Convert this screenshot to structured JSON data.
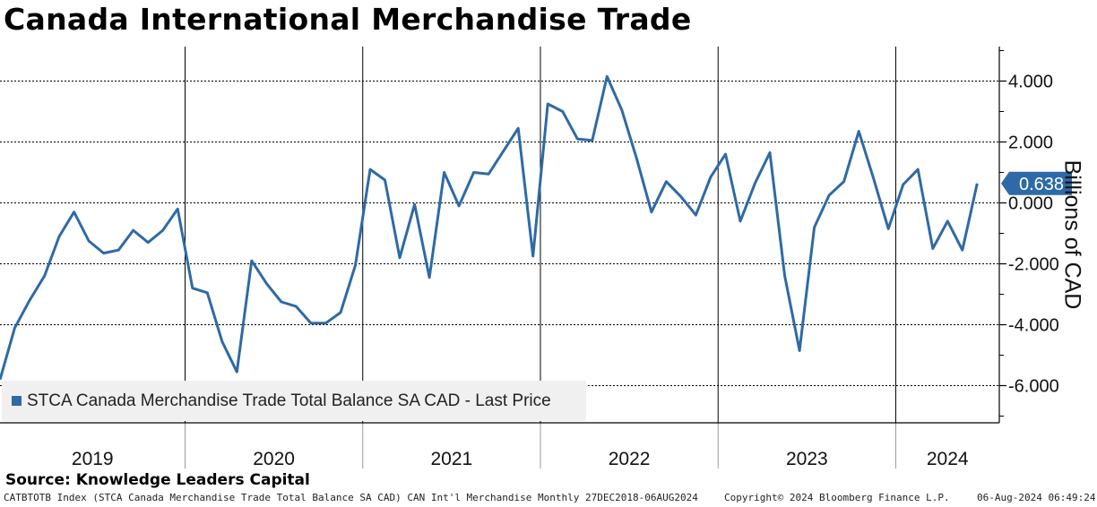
{
  "title": "Canada International Merchandise Trade",
  "source": "Source: Knowledge Leaders Capital",
  "footer": {
    "left": "CATBTOTB Index (STCA Canada Merchandise Trade Total Balance SA CAD) CAN Int'l Merchandise  Monthly 27DEC2018-06AUG2024",
    "copyright": "Copyright© 2024 Bloomberg Finance L.P.",
    "timestamp": "06-Aug-2024 06:49:24"
  },
  "colors": {
    "series": "#2e6aa6",
    "grid": "#000000",
    "legend_bg": "#f0f0f0"
  },
  "chart_data": {
    "type": "line",
    "title": "Canada International Merchandise Trade",
    "ylabel": "Billions of CAD",
    "ylim": [
      -7.2,
      5.2
    ],
    "y_ticks": [
      4.0,
      2.0,
      0.0,
      -2.0,
      -4.0,
      -6.0
    ],
    "y_tick_labels": [
      "4.000",
      "2.000",
      "0.000",
      "-2.000",
      "-4.000",
      "-6.000"
    ],
    "x_start": "2018-12",
    "x_end": "2024-08",
    "year_labels": [
      "2019",
      "2020",
      "2021",
      "2022",
      "2023",
      "2024"
    ],
    "last_value_label": "0.638",
    "legend": "STCA Canada Merchandise Trade Total Balance SA CAD - Last Price",
    "series": [
      {
        "name": "STCA Canada Merchandise Trade Total Balance SA CAD - Last Price",
        "points": [
          [
            "2018-12",
            -5.8
          ],
          [
            "2019-01",
            -4.1
          ],
          [
            "2019-02",
            -3.2
          ],
          [
            "2019-03",
            -2.4
          ],
          [
            "2019-04",
            -1.1
          ],
          [
            "2019-05",
            -0.3
          ],
          [
            "2019-06",
            -1.25
          ],
          [
            "2019-07",
            -1.65
          ],
          [
            "2019-08",
            -1.55
          ],
          [
            "2019-09",
            -0.9
          ],
          [
            "2019-10",
            -1.3
          ],
          [
            "2019-11",
            -0.9
          ],
          [
            "2019-12",
            -0.2
          ],
          [
            "2020-01",
            -2.8
          ],
          [
            "2020-02",
            -2.95
          ],
          [
            "2020-03",
            -4.55
          ],
          [
            "2020-04",
            -5.55
          ],
          [
            "2020-05",
            -1.9
          ],
          [
            "2020-06",
            -2.65
          ],
          [
            "2020-07",
            -3.25
          ],
          [
            "2020-08",
            -3.4
          ],
          [
            "2020-09",
            -3.95
          ],
          [
            "2020-10",
            -3.95
          ],
          [
            "2020-11",
            -3.6
          ],
          [
            "2020-12",
            -2.05
          ],
          [
            "2021-01",
            1.1
          ],
          [
            "2021-02",
            0.75
          ],
          [
            "2021-03",
            -1.8
          ],
          [
            "2021-04",
            -0.05
          ],
          [
            "2021-05",
            -2.45
          ],
          [
            "2021-06",
            1.0
          ],
          [
            "2021-07",
            -0.1
          ],
          [
            "2021-08",
            1.0
          ],
          [
            "2021-09",
            0.95
          ],
          [
            "2021-10",
            1.7
          ],
          [
            "2021-11",
            2.45
          ],
          [
            "2021-12",
            -1.75
          ],
          [
            "2022-01",
            3.25
          ],
          [
            "2022-02",
            3.0
          ],
          [
            "2022-03",
            2.1
          ],
          [
            "2022-04",
            2.05
          ],
          [
            "2022-05",
            4.15
          ],
          [
            "2022-06",
            3.05
          ],
          [
            "2022-07",
            1.45
          ],
          [
            "2022-08",
            -0.3
          ],
          [
            "2022-09",
            0.7
          ],
          [
            "2022-10",
            0.2
          ],
          [
            "2022-11",
            -0.4
          ],
          [
            "2022-12",
            0.85
          ],
          [
            "2023-01",
            1.6
          ],
          [
            "2023-02",
            -0.6
          ],
          [
            "2023-03",
            0.65
          ],
          [
            "2023-04",
            1.65
          ],
          [
            "2023-05",
            -2.4
          ],
          [
            "2023-06",
            -4.85
          ],
          [
            "2023-07",
            -0.8
          ],
          [
            "2023-08",
            0.25
          ],
          [
            "2023-09",
            0.7
          ],
          [
            "2023-10",
            2.35
          ],
          [
            "2023-11",
            0.8
          ],
          [
            "2023-12",
            -0.85
          ],
          [
            "2024-01",
            0.6
          ],
          [
            "2024-02",
            1.1
          ],
          [
            "2024-03",
            -1.5
          ],
          [
            "2024-04",
            -0.6
          ],
          [
            "2024-05",
            -1.55
          ],
          [
            "2024-06",
            0.638
          ]
        ]
      }
    ]
  }
}
